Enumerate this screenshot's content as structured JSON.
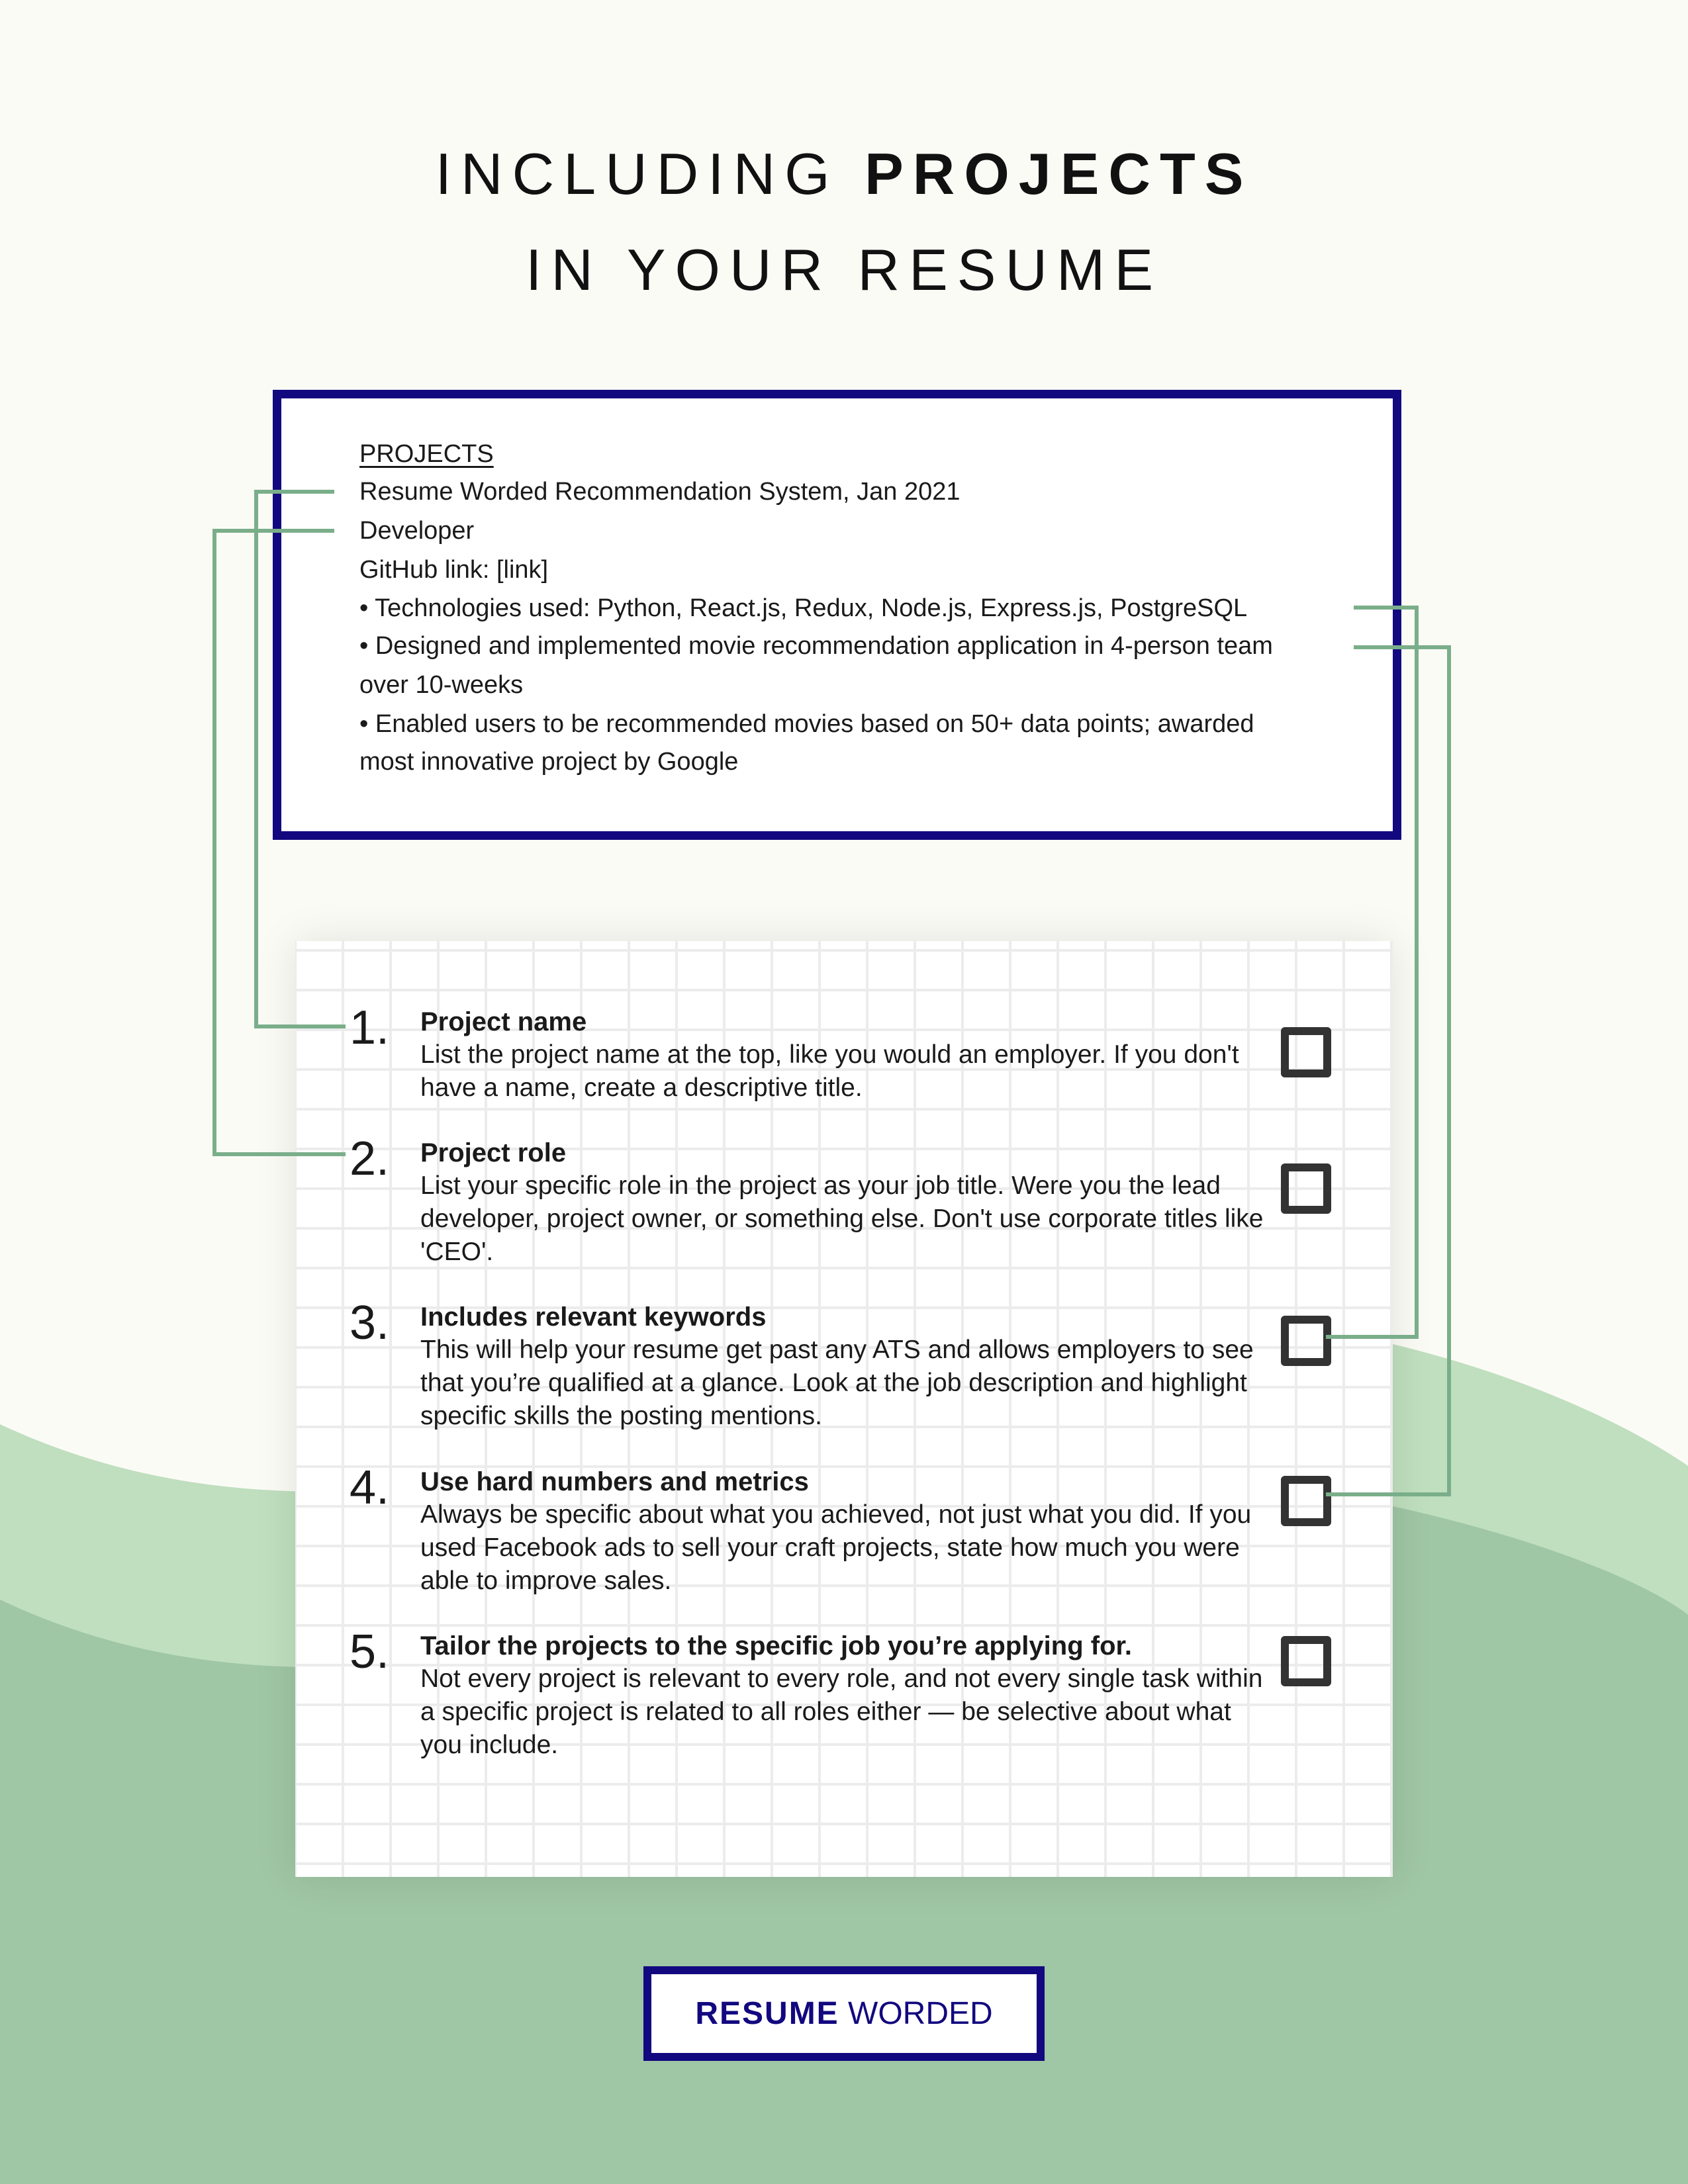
{
  "title": {
    "line1_light": "INCLUDING ",
    "line1_bold": "PROJECTS",
    "line2": "IN YOUR RESUME"
  },
  "resume_example": {
    "heading": "PROJECTS",
    "lines": [
      "Resume Worded Recommendation System, Jan 2021",
      "Developer",
      "GitHub link: [link]",
      "•  Technologies used: Python, React.js, Redux, Node.js, Express.js, PostgreSQL",
      "•  Designed and implemented movie recommendation application in 4-person team",
      "over 10-weeks",
      "•  Enabled users to be recommended movies based on 50+ data points; awarded",
      "most innovative project by Google"
    ]
  },
  "checklist": [
    {
      "number": "1.",
      "heading": "Project name",
      "body": "List the project name at the top, like you would an employer. If you don't have a name, create a descriptive title.",
      "checked": false
    },
    {
      "number": "2.",
      "heading": "Project role",
      "body": "List your specific role in the project as your job title. Were you the lead developer, project owner, or something else. Don't use corporate titles like 'CEO'.",
      "checked": false
    },
    {
      "number": "3.",
      "heading": "Includes relevant keywords",
      "body": "This will help your resume get past any ATS and allows employers to see that you’re qualified at a glance. Look at the job description and highlight specific skills the posting mentions.",
      "checked": false
    },
    {
      "number": "4.",
      "heading": "Use hard numbers and metrics",
      "body": "Always be specific about what you achieved, not just what you did. If you used Facebook ads to sell your craft projects, state how much you were able to improve sales.",
      "checked": false
    },
    {
      "number": "5.",
      "heading": "Tailor the projects to the specific job you’re applying for.",
      "body": "Not every project is relevant to every role, and not every single task within a specific project is related to all roles either — be selective about what you include.",
      "checked": false
    }
  ],
  "logo": {
    "bold": "RESUME",
    "light": " WORDED"
  },
  "colors": {
    "navy": "#12087f",
    "connector": "#7aae8a",
    "wave_light": "#bfdfbe",
    "wave_dark": "#9fc6a5",
    "background": "#fbfbf6"
  }
}
